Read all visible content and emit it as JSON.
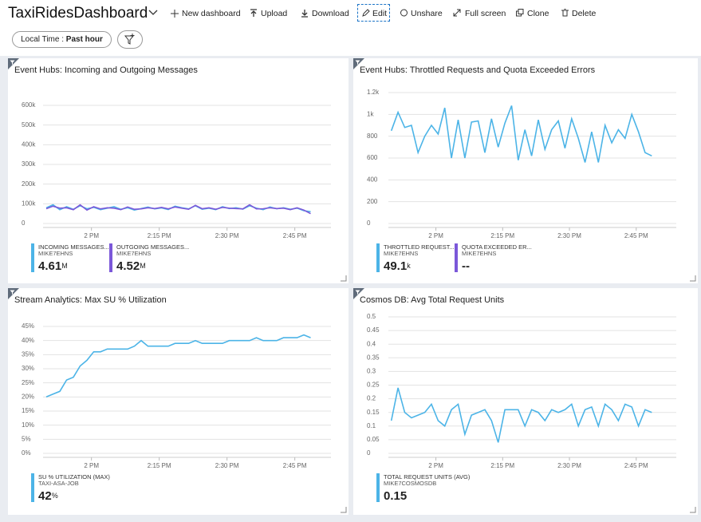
{
  "toolbar": {
    "title": "TaxiRidesDashboard",
    "buttons": [
      "New dashboard",
      "Upload",
      "Download",
      "Edit",
      "Unshare",
      "Full screen",
      "Clone",
      "Delete"
    ]
  },
  "filter": {
    "label": "Local Time :",
    "value": "Past hour"
  },
  "chart_data": [
    {
      "type": "line",
      "title": "Event Hubs: Incoming and Outgoing Messages",
      "x": [
        -10,
        -8.5,
        -7,
        -5.5,
        -4,
        -2.5,
        -1,
        0.5,
        2,
        3.5,
        5,
        6.5,
        8,
        9.5,
        11,
        12.5,
        14,
        15.5,
        17,
        18.5,
        20,
        21.5,
        23,
        24.5,
        26,
        27.5,
        29,
        30.5,
        32,
        33.5,
        35,
        36.5,
        38,
        39.5,
        41,
        42.5,
        44,
        45.5,
        47,
        48.5
      ],
      "xlim": [
        -13,
        53
      ],
      "xticks": [
        {
          "value": 0,
          "label": "2 PM"
        },
        {
          "value": 15,
          "label": "2:15 PM"
        },
        {
          "value": 30,
          "label": "2:30 PM"
        },
        {
          "value": 45,
          "label": "2:45 PM"
        }
      ],
      "ylim": [
        0,
        600000
      ],
      "yticks": [
        0,
        {
          "value": 100000,
          "label": "100k"
        },
        {
          "value": 200000,
          "label": "200k"
        },
        {
          "value": 300000,
          "label": "300k"
        },
        {
          "value": 400000,
          "label": "400k"
        },
        {
          "value": 500000,
          "label": "500k"
        },
        {
          "value": 600000,
          "label": "600k"
        }
      ],
      "grid": true,
      "series": [
        {
          "name": "INCOMING MESSAGES...",
          "resource": "MIKE7EHNS",
          "color": "#4cb4e7",
          "total": 4.61,
          "total_unit": "M",
          "values": [
            80000,
            95000,
            70000,
            85000,
            72000,
            90000,
            75000,
            82000,
            70000,
            78000,
            85000,
            72000,
            80000,
            68000,
            76000,
            83000,
            74000,
            79000,
            71000,
            88000,
            80000,
            74000,
            90000,
            72000,
            78000,
            70000,
            85000,
            76000,
            80000,
            73000,
            90000,
            78000,
            70000,
            84000,
            75000,
            80000,
            72000,
            78000,
            65000,
            60000
          ]
        },
        {
          "name": "OUTGOING MESSAGES...",
          "resource": "MIKE7EHNS",
          "color": "#7b58d9",
          "total": 4.52,
          "total_unit": "M",
          "values": [
            75000,
            88000,
            78000,
            80000,
            70000,
            95000,
            68000,
            85000,
            74000,
            80000,
            78000,
            70000,
            84000,
            72000,
            74000,
            80000,
            76000,
            82000,
            74000,
            84000,
            78000,
            72000,
            92000,
            75000,
            80000,
            72000,
            82000,
            78000,
            76000,
            74000,
            95000,
            74000,
            75000,
            80000,
            76000,
            78000,
            70000,
            80000,
            68000,
            50000
          ]
        }
      ]
    },
    {
      "type": "line",
      "title": "Event Hubs: Throttled Requests and Quota Exceeded Errors",
      "x": [
        -10,
        -8.5,
        -7,
        -5.5,
        -4,
        -2.5,
        -1,
        0.5,
        2,
        3.5,
        5,
        6.5,
        8,
        9.5,
        11,
        12.5,
        14,
        15.5,
        17,
        18.5,
        20,
        21.5,
        23,
        24.5,
        26,
        27.5,
        29,
        30.5,
        32,
        33.5,
        35,
        36.5,
        38,
        39.5,
        41,
        42.5,
        44,
        45.5,
        47,
        48.5
      ],
      "xlim": [
        -13,
        54
      ],
      "xticks": [
        {
          "value": 0,
          "label": "2 PM"
        },
        {
          "value": 15,
          "label": "2:15 PM"
        },
        {
          "value": 30,
          "label": "2:30 PM"
        },
        {
          "value": 45,
          "label": "2:45 PM"
        }
      ],
      "ylim": [
        0,
        1200
      ],
      "yticks": [
        0,
        200,
        400,
        600,
        800,
        {
          "value": 1000,
          "label": "1k"
        },
        {
          "value": 1200,
          "label": "1.2k"
        }
      ],
      "grid": true,
      "series": [
        {
          "name": "THROTTLED REQUEST...",
          "resource": "MIKE7EHNS",
          "color": "#4cb4e7",
          "total": 49.1,
          "total_unit": "k",
          "values": [
            850,
            1020,
            880,
            900,
            650,
            800,
            900,
            820,
            1060,
            600,
            950,
            600,
            930,
            940,
            650,
            960,
            700,
            920,
            1080,
            580,
            860,
            620,
            950,
            680,
            860,
            940,
            690,
            960,
            780,
            560,
            840,
            560,
            900,
            740,
            860,
            780,
            1000,
            840,
            650,
            620
          ]
        },
        {
          "name": "QUOTA EXCEEDED ER...",
          "resource": "MIKE7EHNS",
          "color": "#7b58d9",
          "total": "--"
        }
      ]
    },
    {
      "type": "line",
      "title": "Stream Analytics: Max SU % Utilization",
      "x": [
        -10,
        -8.5,
        -7,
        -5.5,
        -4,
        -2.5,
        -1,
        0.5,
        2,
        3.5,
        5,
        6.5,
        8,
        9.5,
        11,
        12.5,
        14,
        15.5,
        17,
        18.5,
        20,
        21.5,
        23,
        24.5,
        26,
        27.5,
        29,
        30.5,
        32,
        33.5,
        35,
        36.5,
        38,
        39.5,
        41,
        42.5,
        44,
        45.5,
        47,
        48.5
      ],
      "xlim": [
        -13,
        53
      ],
      "xticks": [
        {
          "value": 0,
          "label": "2 PM"
        },
        {
          "value": 15,
          "label": "2:15 PM"
        },
        {
          "value": 30,
          "label": "2:30 PM"
        },
        {
          "value": 45,
          "label": "2:45 PM"
        }
      ],
      "ylim": [
        0,
        45
      ],
      "yticks": [
        {
          "value": 0,
          "label": "0%"
        },
        {
          "value": 5,
          "label": "5%"
        },
        {
          "value": 10,
          "label": "10%"
        },
        {
          "value": 15,
          "label": "15%"
        },
        {
          "value": 20,
          "label": "20%"
        },
        {
          "value": 25,
          "label": "25%"
        },
        {
          "value": 30,
          "label": "30%"
        },
        {
          "value": 35,
          "label": "35%"
        },
        {
          "value": 40,
          "label": "40%"
        },
        {
          "value": 45,
          "label": "45%"
        }
      ],
      "grid": true,
      "series": [
        {
          "name": "SU % UTILIZATION (MAX)",
          "resource": "TAXI-ASA-JOB",
          "color": "#4cb4e7",
          "total": 42,
          "total_unit": "%",
          "values": [
            20,
            21,
            22,
            26,
            27,
            31,
            33,
            36,
            36,
            37,
            37,
            37,
            37,
            38,
            40,
            38,
            38,
            38,
            38,
            39,
            39,
            39,
            40,
            39,
            39,
            39,
            39,
            40,
            40,
            40,
            40,
            41,
            40,
            40,
            40,
            41,
            41,
            41,
            42,
            41
          ]
        }
      ]
    },
    {
      "type": "line",
      "title": "Cosmos DB: Avg Total Request Units",
      "x": [
        -10,
        -8.5,
        -7,
        -5.5,
        -4,
        -2.5,
        -1,
        0.5,
        2,
        3.5,
        5,
        6.5,
        8,
        9.5,
        11,
        12.5,
        14,
        15.5,
        17,
        18.5,
        20,
        21.5,
        23,
        24.5,
        26,
        27.5,
        29,
        30.5,
        32,
        33.5,
        35,
        36.5,
        38,
        39.5,
        41,
        42.5,
        44,
        45.5,
        47,
        48.5
      ],
      "xlim": [
        -13,
        54
      ],
      "xticks": [
        {
          "value": 0,
          "label": "2 PM"
        },
        {
          "value": 15,
          "label": "2:15 PM"
        },
        {
          "value": 30,
          "label": "2:30 PM"
        },
        {
          "value": 45,
          "label": "2:45 PM"
        }
      ],
      "ylim": [
        0,
        0.5
      ],
      "yticks": [
        0,
        0.05,
        0.1,
        0.15,
        0.2,
        0.25,
        0.3,
        0.35,
        0.4,
        0.45,
        0.5
      ],
      "grid": true,
      "series": [
        {
          "name": "TOTAL REQUEST UNITS (AVG)",
          "resource": "MIKE7COSMOSDB",
          "color": "#4cb4e7",
          "total": 0.15,
          "values": [
            0.12,
            0.24,
            0.15,
            0.13,
            0.14,
            0.15,
            0.18,
            0.12,
            0.1,
            0.16,
            0.18,
            0.07,
            0.14,
            0.15,
            0.16,
            0.12,
            0.04,
            0.16,
            0.16,
            0.16,
            0.1,
            0.16,
            0.15,
            0.12,
            0.16,
            0.15,
            0.16,
            0.18,
            0.1,
            0.16,
            0.17,
            0.1,
            0.18,
            0.16,
            0.12,
            0.18,
            0.17,
            0.1,
            0.16,
            0.15
          ]
        }
      ]
    }
  ]
}
